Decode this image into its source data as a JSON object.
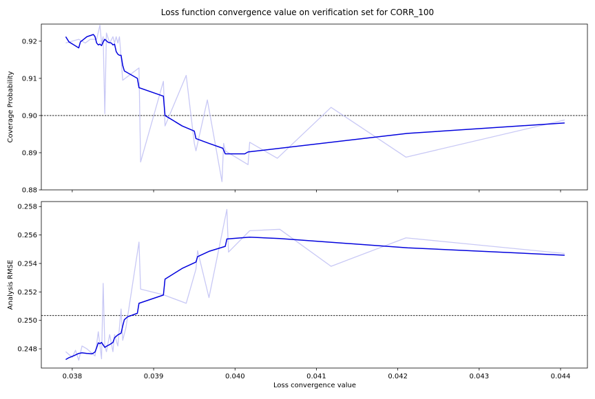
{
  "chart_data": {
    "title": "Loss function convergence value on verification set for CORR_100",
    "xlabel": "Loss convergence value",
    "x_ticks": [
      "0.038",
      "0.039",
      "0.040",
      "0.041",
      "0.042",
      "0.043",
      "0.044"
    ],
    "xlim": [
      0.03762,
      0.04433
    ],
    "panels": [
      {
        "type": "line",
        "ylabel": "Coverage Probability",
        "ylim": [
          0.88,
          0.9246
        ],
        "y_ticks": [
          "0.88",
          "0.89",
          "0.90",
          "0.91",
          "0.92"
        ],
        "reference_line": 0.9,
        "series": [
          {
            "color": "#c8c8f5",
            "x": [
              0.03792,
              0.03808,
              0.03816,
              0.03822,
              0.0383,
              0.03834,
              0.03836,
              0.03838,
              0.0384,
              0.03842,
              0.03846,
              0.0385,
              0.03852,
              0.03854,
              0.03856,
              0.03858,
              0.0386,
              0.03862,
              0.03882,
              0.03884,
              0.03912,
              0.03914,
              0.0394,
              0.0395,
              0.03952,
              0.03966,
              0.03984,
              0.03986,
              0.03988,
              0.04016,
              0.04018,
              0.04052,
              0.04118,
              0.0421,
              0.04405
            ],
            "y": [
              0.9195,
              0.9205,
              0.9195,
              0.9205,
              0.9205,
              0.9243,
              0.9195,
              0.9212,
              0.9005,
              0.9222,
              0.9195,
              0.9212,
              0.9195,
              0.9212,
              0.9195,
              0.9212,
              0.9155,
              0.9095,
              0.9128,
              0.8875,
              0.9092,
              0.8972,
              0.9108,
              0.8925,
              0.8905,
              0.9042,
              0.8822,
              0.8925,
              0.8905,
              0.8868,
              0.8928,
              0.8885,
              0.9022,
              0.8888,
              0.8988
            ]
          },
          {
            "color": "#0000dd",
            "x": [
              0.03792,
              0.03796,
              0.03802,
              0.03808,
              0.0381,
              0.03814,
              0.03818,
              0.03822,
              0.03826,
              0.03828,
              0.0383,
              0.03832,
              0.03834,
              0.03836,
              0.03838,
              0.0384,
              0.03844,
              0.03848,
              0.0385,
              0.03852,
              0.03854,
              0.03856,
              0.03858,
              0.0386,
              0.03862,
              0.03864,
              0.0388,
              0.03882,
              0.03912,
              0.03914,
              0.03935,
              0.0395,
              0.03952,
              0.03968,
              0.03985,
              0.03988,
              0.04012,
              0.04016,
              0.04212,
              0.04405
            ],
            "y": [
              0.9212,
              0.9198,
              0.919,
              0.9182,
              0.9198,
              0.9205,
              0.9212,
              0.9215,
              0.9218,
              0.9212,
              0.9195,
              0.919,
              0.9192,
              0.9188,
              0.9198,
              0.9205,
              0.9197,
              0.9195,
              0.919,
              0.9192,
              0.9172,
              0.9165,
              0.9162,
              0.9162,
              0.9135,
              0.912,
              0.91,
              0.9075,
              0.9052,
              0.9,
              0.8972,
              0.8958,
              0.8938,
              0.8925,
              0.8912,
              0.8897,
              0.8897,
              0.8902,
              0.8952,
              0.898
            ]
          }
        ]
      },
      {
        "type": "line",
        "ylabel": "Analysis RMSE",
        "ylim": [
          0.24665,
          0.25835
        ],
        "y_ticks": [
          "0.248",
          "0.250",
          "0.252",
          "0.254",
          "0.256",
          "0.258"
        ],
        "reference_line": 0.25034,
        "series": [
          {
            "color": "#c8c8f5",
            "x": [
              0.03792,
              0.038,
              0.03804,
              0.03808,
              0.03812,
              0.03818,
              0.03828,
              0.03832,
              0.03836,
              0.03838,
              0.0384,
              0.03842,
              0.03846,
              0.0385,
              0.03852,
              0.03856,
              0.0386,
              0.03862,
              0.03866,
              0.03882,
              0.03884,
              0.03912,
              0.0394,
              0.03952,
              0.03954,
              0.03968,
              0.0399,
              0.03992,
              0.04018,
              0.04055,
              0.04118,
              0.0421,
              0.04405
            ],
            "y": [
              0.2478,
              0.2474,
              0.2479,
              0.2472,
              0.2482,
              0.248,
              0.2475,
              0.2492,
              0.2473,
              0.2526,
              0.2482,
              0.2478,
              0.249,
              0.2478,
              0.249,
              0.2482,
              0.2508,
              0.2486,
              0.2495,
              0.2555,
              0.2522,
              0.2518,
              0.2512,
              0.2536,
              0.2549,
              0.2516,
              0.2578,
              0.2548,
              0.2563,
              0.2564,
              0.2538,
              0.2558,
              0.2547
            ]
          },
          {
            "color": "#0000dd",
            "x": [
              0.03792,
              0.03796,
              0.03802,
              0.03808,
              0.03812,
              0.03818,
              0.03824,
              0.03826,
              0.03828,
              0.0383,
              0.03832,
              0.03834,
              0.03836,
              0.03838,
              0.0384,
              0.03842,
              0.03846,
              0.0385,
              0.03852,
              0.03856,
              0.0386,
              0.03862,
              0.03864,
              0.03868,
              0.0388,
              0.03882,
              0.03912,
              0.03914,
              0.03935,
              0.03952,
              0.03954,
              0.03968,
              0.03988,
              0.0399,
              0.04018,
              0.04055,
              0.04212,
              0.04405
            ],
            "y": [
              0.24725,
              0.24738,
              0.24752,
              0.24768,
              0.24772,
              0.24768,
              0.24765,
              0.2477,
              0.24778,
              0.24808,
              0.24842,
              0.24836,
              0.24845,
              0.24828,
              0.2481,
              0.24818,
              0.2483,
              0.24845,
              0.24878,
              0.24898,
              0.2491,
              0.2496,
              0.25005,
              0.25025,
              0.2505,
              0.2512,
              0.25178,
              0.2529,
              0.25365,
              0.2541,
              0.25448,
              0.25485,
              0.2552,
              0.25572,
              0.25585,
              0.25575,
              0.2551,
              0.25458
            ]
          }
        ]
      }
    ]
  }
}
